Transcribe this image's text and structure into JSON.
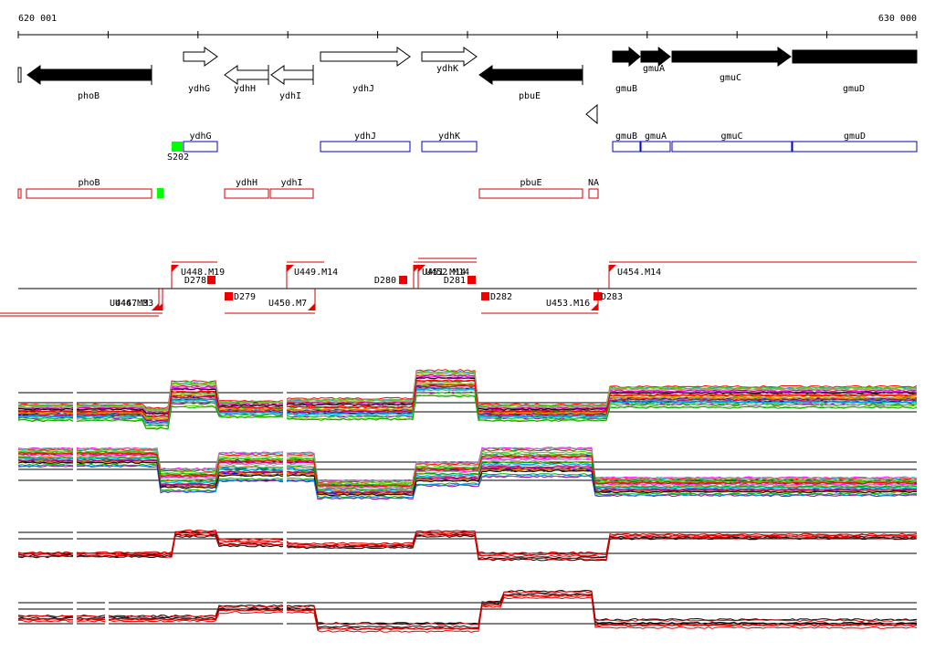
{
  "scale": {
    "start": "620 001",
    "end": "630 000"
  },
  "genes": [
    "phoB",
    "ydhG",
    "ydhH",
    "ydhI",
    "ydhJ",
    "ydhK",
    "pbuE",
    "gmuB",
    "gmuA",
    "gmuC",
    "gmuD"
  ],
  "forward_segments": {
    "labels": [
      "ydhG",
      "ydhJ",
      "ydhK",
      "gmuB",
      "gmuA",
      "gmuC",
      "gmuD"
    ],
    "site": "S202"
  },
  "reverse_segments": {
    "labels": [
      "phoB",
      "ydhH",
      "ydhI",
      "pbuE",
      "NA"
    ]
  },
  "upshifts": [
    "U448.M19",
    "U449.M14",
    "U451.M14",
    "U452.M14",
    "U454.M14",
    "U446.M3",
    "U447.M3",
    "U450.M7",
    "U453.M16"
  ],
  "downshifts": [
    "D278",
    "D280",
    "D281",
    "D279",
    "D282",
    "D283"
  ]
}
